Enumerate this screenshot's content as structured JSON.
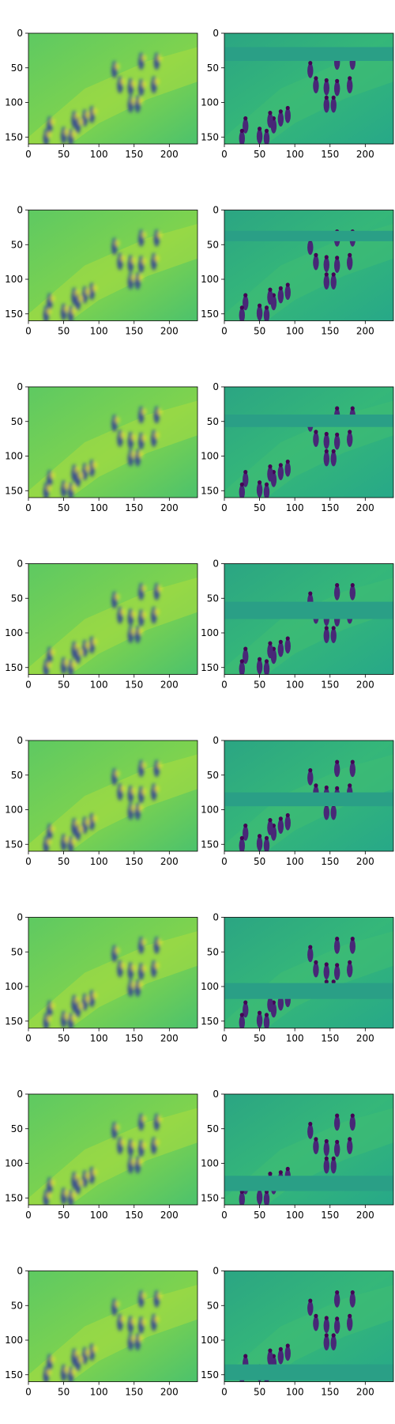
{
  "figure": {
    "rows": 8,
    "cols": 2,
    "x_ticks": [
      "0",
      "50",
      "100",
      "150",
      "200"
    ],
    "y_ticks": [
      "0",
      "50",
      "100",
      "150"
    ],
    "x_tick_values": [
      0,
      50,
      100,
      150,
      200
    ],
    "y_tick_values": [
      0,
      50,
      100,
      150
    ],
    "image_width_units": 240,
    "image_height_units": 160,
    "colormap": [
      "#440154",
      "#3b528b",
      "#21918c",
      "#5ec962",
      "#fde725"
    ],
    "left_column": "blurred reconstruction",
    "right_column": "detail image with horizontal masked band",
    "masked_band_rows": [
      [
        20,
        40
      ],
      [
        30,
        45
      ],
      [
        40,
        58
      ],
      [
        55,
        80
      ],
      [
        75,
        95
      ],
      [
        95,
        118
      ],
      [
        118,
        140
      ],
      [
        135,
        158
      ]
    ]
  }
}
